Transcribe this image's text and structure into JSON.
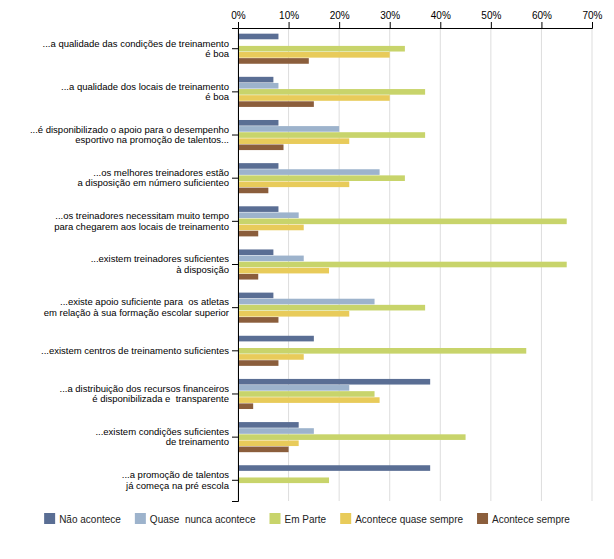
{
  "chart_data": {
    "type": "bar",
    "orientation": "horizontal",
    "categories": [
      "...a qualidade das condições de treinamento\né boa",
      "...a qualidade dos locais de treinamento\né boa",
      "...é disponibilizado o apoio para o desempenho\nesportivo na promoção de talentos...",
      "...os melhores treinadores estão\na disposição em número suficienteo",
      "...os treinadores necessitam muito tempo\npara chegarem aos locais de treinamento",
      "...existem treinadores suficientes\nà disposição",
      "...existe apoio suficiente para  os atletas\nem relação à sua formação escolar superior",
      "...existem centros de treinamento suficientes",
      "...a distribuição dos recursos financeiros\né disponibilizada e  transparente",
      "...existem condições suficientes\nde treinamento",
      "...a promoção de talentos\njá começa na pré escola"
    ],
    "series": [
      {
        "name": "Não acontece",
        "color": "#5a6e94",
        "values": [
          8,
          7,
          8,
          8,
          8,
          7,
          7,
          15,
          38,
          12,
          38
        ]
      },
      {
        "name": "Quase  nunca acontece",
        "color": "#9db3cc",
        "values": [
          0,
          8,
          20,
          28,
          12,
          13,
          27,
          0,
          22,
          15,
          0
        ]
      },
      {
        "name": "Em Parte",
        "color": "#c8d46b",
        "values": [
          33,
          37,
          37,
          33,
          65,
          65,
          37,
          57,
          27,
          45,
          18
        ]
      },
      {
        "name": "Acontece quase sempre",
        "color": "#e8cb5a",
        "values": [
          30,
          30,
          22,
          22,
          13,
          18,
          22,
          13,
          28,
          12,
          0
        ]
      },
      {
        "name": "Acontece sempre",
        "color": "#8b5e3c",
        "values": [
          14,
          15,
          9,
          6,
          4,
          4,
          8,
          8,
          3,
          10,
          0
        ]
      }
    ],
    "xlim": [
      0,
      70
    ],
    "xticks": [
      {
        "value": 0,
        "label": "0%"
      },
      {
        "value": 10,
        "label": "10%"
      },
      {
        "value": 20,
        "label": "20%"
      },
      {
        "value": 30,
        "label": "30%"
      },
      {
        "value": 40,
        "label": "40%"
      },
      {
        "value": 50,
        "label": "50%"
      },
      {
        "value": 60,
        "label": "60%"
      },
      {
        "value": 70,
        "label": "70%"
      }
    ],
    "grid": true,
    "legend": "bottom"
  }
}
